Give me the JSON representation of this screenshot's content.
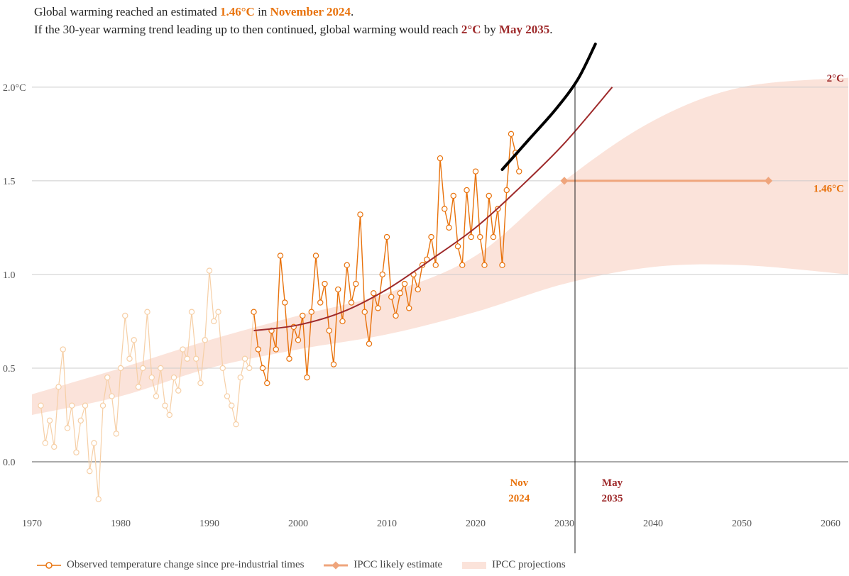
{
  "headline": {
    "line1_pre": "Global warming reached an estimated ",
    "line1_value": "1.46°C",
    "line1_mid": " in ",
    "line1_date": "November 2024",
    "line1_post": ".",
    "line2_pre": "If the 30-year warming trend leading up to then continued, global warming would reach ",
    "line2_value": "2°C",
    "line2_mid": " by ",
    "line2_date": "May 2035",
    "line2_post": "."
  },
  "colors": {
    "observed": "#e8720c",
    "observed_faded": "#f6cfa6",
    "trend": "#9e2a2b",
    "ipcc_estimate": "#efa57c",
    "ipcc_band": "#fbe3da",
    "grid": "#cccccc",
    "axis": "#555555",
    "annotation": "#000000"
  },
  "chart_data": {
    "type": "line",
    "xlabel": "",
    "ylabel": "",
    "xlim": [
      1970,
      2062
    ],
    "ylim": [
      -0.25,
      2.2
    ],
    "x_ticks": [
      1970,
      1980,
      1990,
      2000,
      2010,
      2020,
      2030,
      2040,
      2050,
      2060
    ],
    "y_ticks": [
      {
        "value": 0.0,
        "label": "0.0"
      },
      {
        "value": 0.5,
        "label": "0.5"
      },
      {
        "value": 1.0,
        "label": "1.0"
      },
      {
        "value": 1.5,
        "label": "1.5"
      },
      {
        "value": 2.0,
        "label": "2.0°C"
      }
    ],
    "series": [
      {
        "name": "Observed temperature change since pre-industrial times",
        "style": "line-with-hollow-markers",
        "highlight_from": 1995.0,
        "x": [
          1971.0,
          1971.5,
          1972.0,
          1972.5,
          1973.0,
          1973.5,
          1974.0,
          1974.5,
          1975.0,
          1975.5,
          1976.0,
          1976.5,
          1977.0,
          1977.5,
          1978.0,
          1978.5,
          1979.0,
          1979.5,
          1980.0,
          1980.5,
          1981.0,
          1981.5,
          1982.0,
          1982.5,
          1983.0,
          1983.5,
          1984.0,
          1984.5,
          1985.0,
          1985.5,
          1986.0,
          1986.5,
          1987.0,
          1987.5,
          1988.0,
          1988.5,
          1989.0,
          1989.5,
          1990.0,
          1990.5,
          1991.0,
          1991.5,
          1992.0,
          1992.5,
          1993.0,
          1993.5,
          1994.0,
          1994.5,
          1995.0,
          1995.5,
          1996.0,
          1996.5,
          1997.0,
          1997.5,
          1998.0,
          1998.5,
          1999.0,
          1999.5,
          2000.0,
          2000.5,
          2001.0,
          2001.5,
          2002.0,
          2002.5,
          2003.0,
          2003.5,
          2004.0,
          2004.5,
          2005.0,
          2005.5,
          2006.0,
          2006.5,
          2007.0,
          2007.5,
          2008.0,
          2008.5,
          2009.0,
          2009.5,
          2010.0,
          2010.5,
          2011.0,
          2011.5,
          2012.0,
          2012.5,
          2013.0,
          2013.5,
          2014.0,
          2014.5,
          2015.0,
          2015.5,
          2016.0,
          2016.5,
          2017.0,
          2017.5,
          2018.0,
          2018.5,
          2019.0,
          2019.5,
          2020.0,
          2020.5,
          2021.0,
          2021.5,
          2022.0,
          2022.5,
          2023.0,
          2023.5,
          2024.0,
          2024.5,
          2024.9
        ],
        "values": [
          0.3,
          0.1,
          0.22,
          0.08,
          0.4,
          0.6,
          0.18,
          0.3,
          0.05,
          0.22,
          0.3,
          -0.05,
          0.1,
          -0.2,
          0.3,
          0.45,
          0.35,
          0.15,
          0.5,
          0.78,
          0.55,
          0.65,
          0.4,
          0.5,
          0.8,
          0.45,
          0.35,
          0.5,
          0.3,
          0.25,
          0.45,
          0.38,
          0.6,
          0.55,
          0.8,
          0.55,
          0.42,
          0.65,
          1.02,
          0.75,
          0.8,
          0.5,
          0.35,
          0.3,
          0.2,
          0.45,
          0.55,
          0.5,
          0.8,
          0.6,
          0.5,
          0.42,
          0.7,
          0.6,
          1.1,
          0.85,
          0.55,
          0.72,
          0.65,
          0.78,
          0.45,
          0.8,
          1.1,
          0.85,
          0.95,
          0.7,
          0.52,
          0.92,
          0.75,
          1.05,
          0.85,
          0.95,
          1.32,
          0.8,
          0.63,
          0.9,
          0.82,
          1.0,
          1.2,
          0.88,
          0.78,
          0.9,
          0.95,
          0.82,
          1.0,
          0.92,
          1.05,
          1.08,
          1.2,
          1.05,
          1.62,
          1.35,
          1.25,
          1.42,
          1.15,
          1.05,
          1.45,
          1.2,
          1.55,
          1.2,
          1.05,
          1.42,
          1.2,
          1.35,
          1.05,
          1.45,
          1.75,
          1.65,
          1.55
        ]
      },
      {
        "name": "30-year warming trend",
        "style": "curve",
        "x": [
          1995.0,
          2000.0,
          2005.0,
          2010.0,
          2015.0,
          2020.0,
          2024.9,
          2030.0,
          2035.4
        ],
        "values": [
          0.7,
          0.73,
          0.8,
          0.92,
          1.08,
          1.25,
          1.46,
          1.7,
          2.0
        ]
      },
      {
        "name": "IPCC likely estimate",
        "style": "segment",
        "x": [
          2030.0,
          2053.0
        ],
        "values": [
          1.5,
          1.5
        ]
      },
      {
        "name": "IPCC projections",
        "style": "band",
        "x": [
          1970,
          1980,
          1990,
          2000,
          2010,
          2020,
          2030,
          2040,
          2050,
          2062
        ],
        "lower": [
          0.25,
          0.35,
          0.5,
          0.6,
          0.68,
          0.8,
          0.95,
          1.04,
          1.05,
          1.0
        ],
        "upper": [
          0.36,
          0.5,
          0.65,
          0.78,
          0.9,
          1.1,
          1.5,
          1.82,
          2.0,
          2.05
        ]
      }
    ],
    "annotations": [
      {
        "label_line1": "Nov",
        "label_line2": "2024",
        "x": 2024.9
      },
      {
        "label_line1": "May",
        "label_line2": "2035",
        "x": 2035.4
      }
    ],
    "end_labels": [
      {
        "text": "2°C",
        "value": 2.0
      },
      {
        "text": "1.46°C",
        "value": 1.46
      }
    ],
    "reference_line_x": 2031.2,
    "hand_drawn_stroke": {
      "x": [
        2023.0,
        2026.0,
        2029.0,
        2031.5,
        2033.5
      ],
      "values": [
        1.56,
        1.72,
        1.88,
        2.04,
        2.23
      ]
    }
  },
  "legend": {
    "observed": "Observed temperature change since pre-industrial times",
    "ipcc_estimate": "IPCC likely estimate",
    "ipcc_projections": "IPCC projections"
  }
}
